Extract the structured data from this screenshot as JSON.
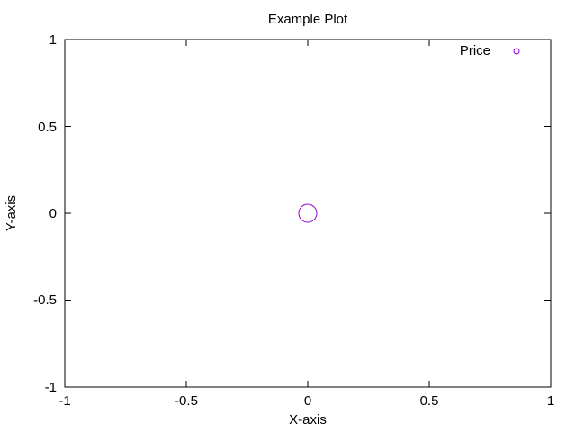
{
  "chart_data": {
    "type": "scatter",
    "title": "Example Plot",
    "xlabel": "X-axis",
    "ylabel": "Y-axis",
    "xlim": [
      -1,
      1
    ],
    "ylim": [
      -1,
      1
    ],
    "x_ticks": [
      "-1",
      "-0.5",
      "0",
      "0.5",
      "1"
    ],
    "y_ticks": [
      "1",
      "0.5",
      "0",
      "-0.5",
      "-1"
    ],
    "x_tick_values": [
      -1,
      -0.5,
      0,
      0.5,
      1
    ],
    "y_tick_values": [
      1,
      0.5,
      0,
      -0.5,
      -1
    ],
    "grid": false,
    "legend_position": "top-right",
    "series": [
      {
        "name": "Price",
        "color": "#9400d3",
        "marker": "circle",
        "x": [
          0
        ],
        "y": [
          0
        ]
      }
    ]
  }
}
